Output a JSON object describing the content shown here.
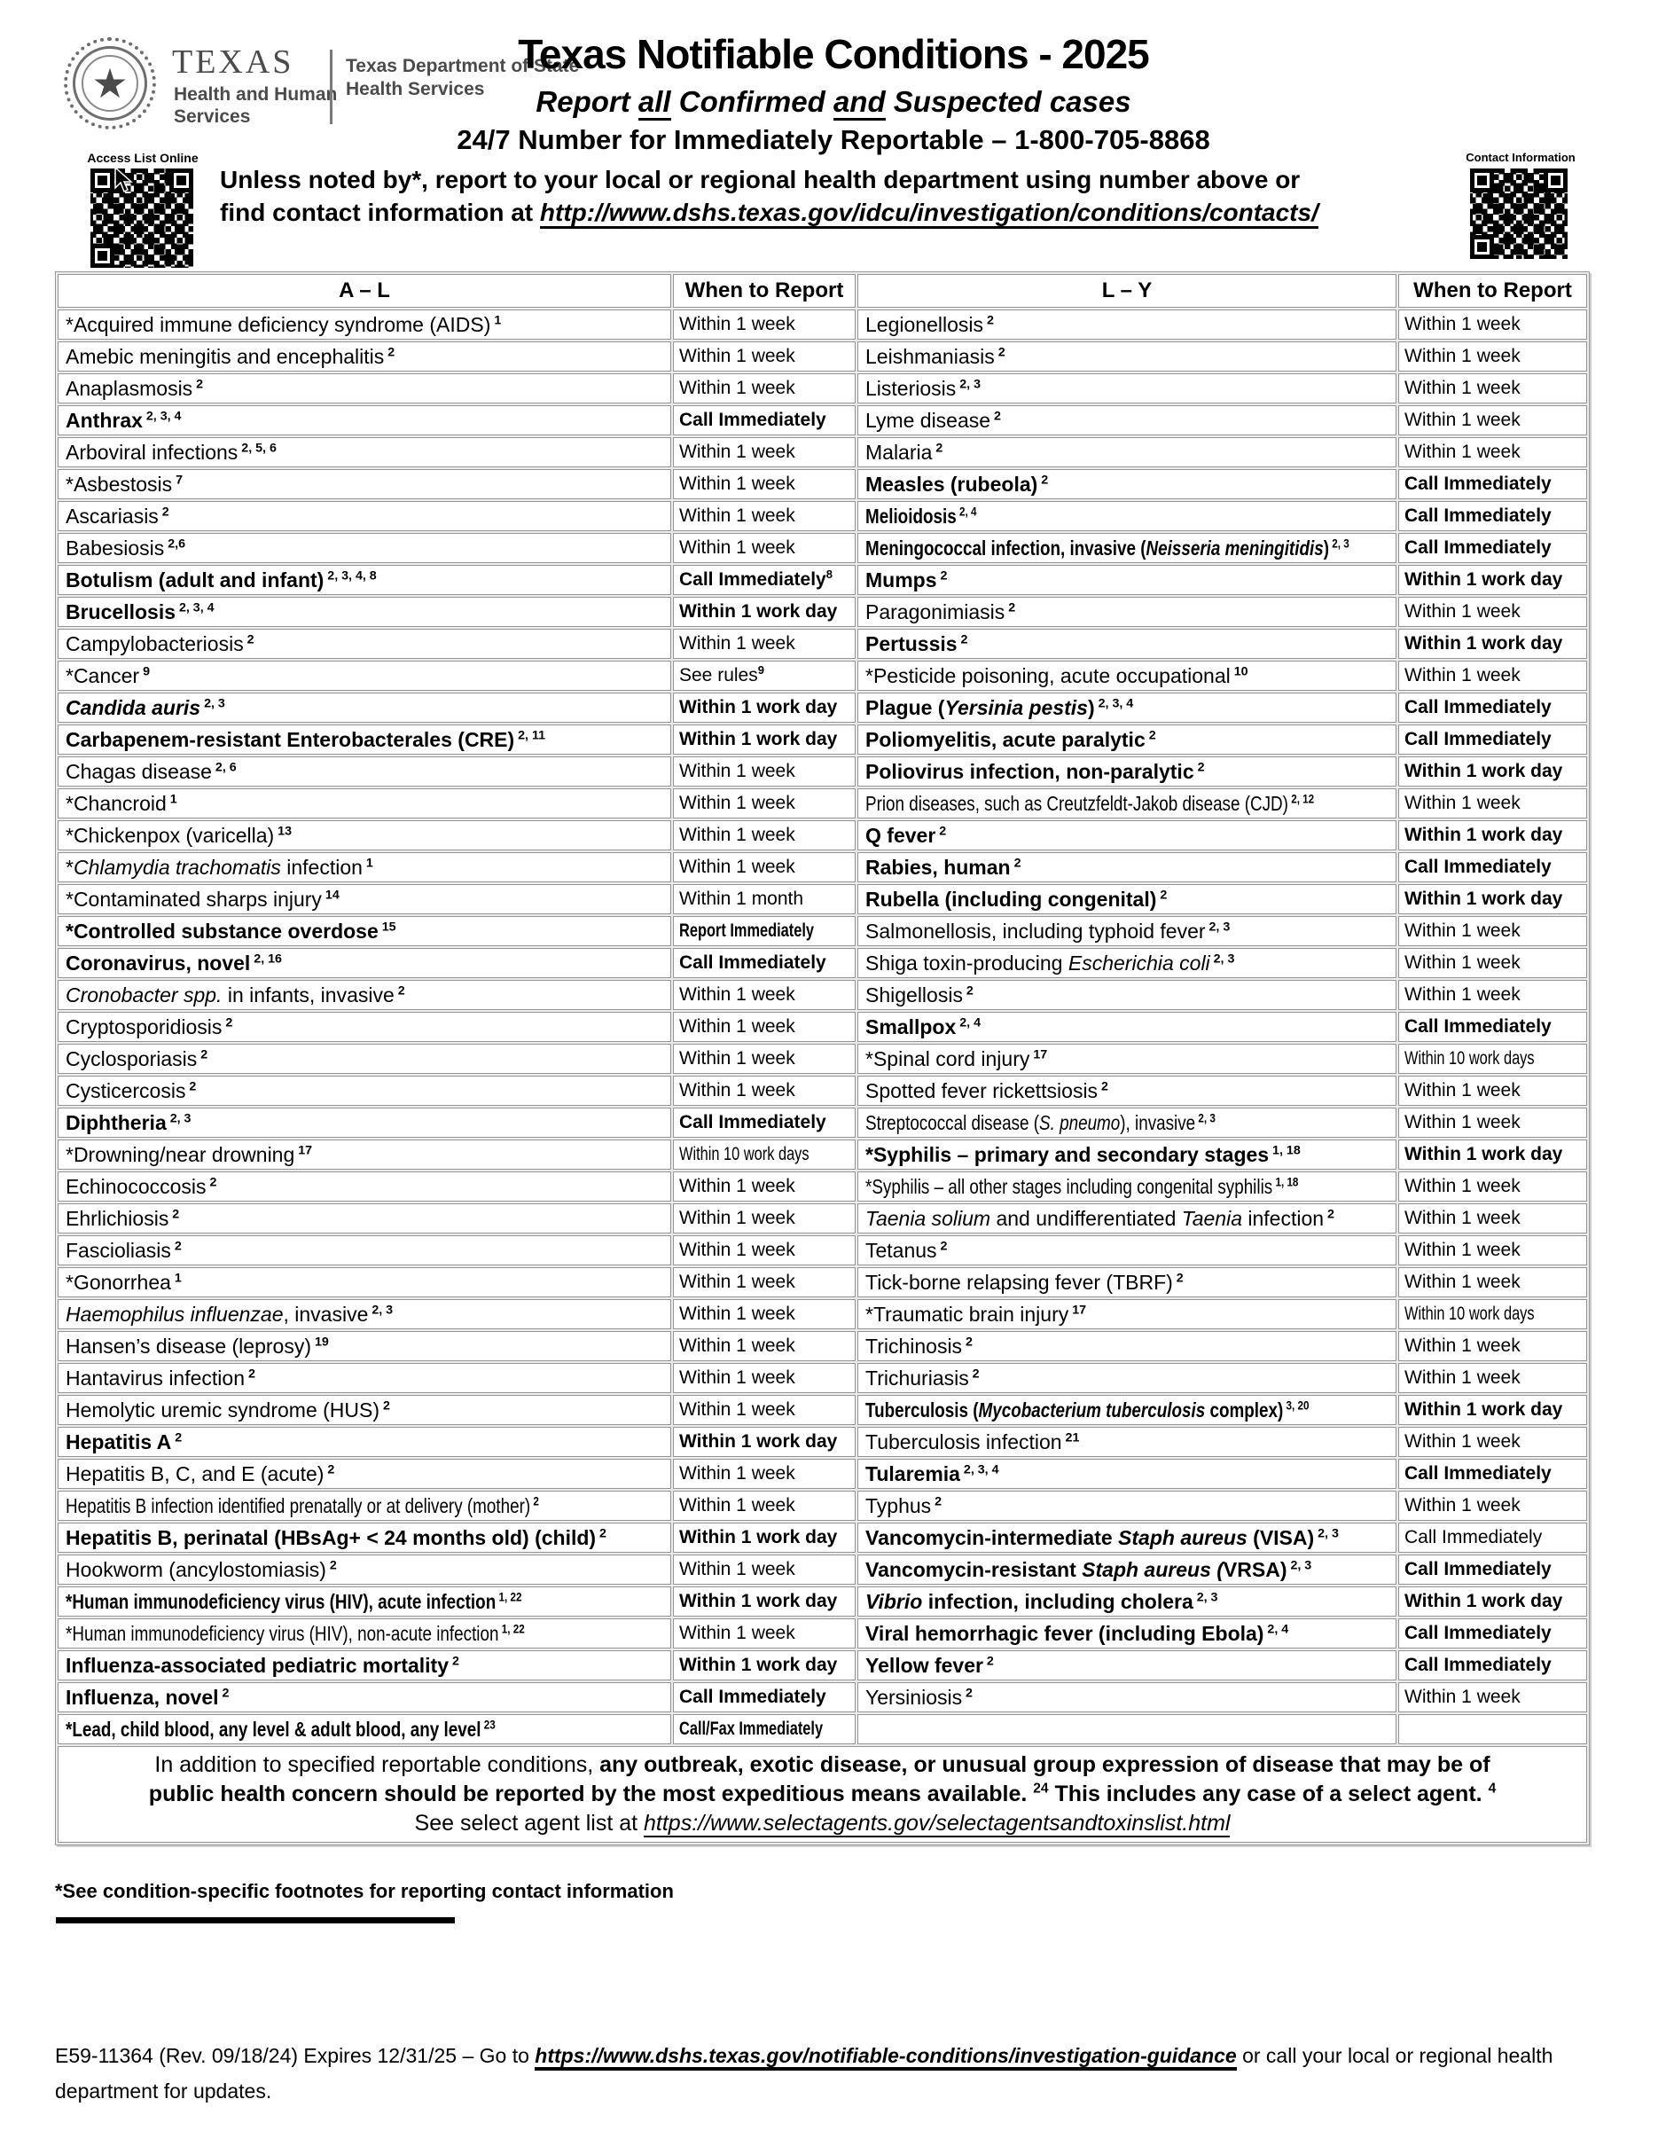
{
  "header": {
    "logo": {
      "texas": "TEXAS",
      "hhs_line1": "Health and Human",
      "hhs_line2": "Services",
      "dshs_line1": "Texas Department of State",
      "dshs_line2": "Health Services"
    },
    "title": "Texas Notifiable Conditions - 2025",
    "subtitle": {
      "pre": "Report ",
      "u1": "all",
      "mid": " Confirmed ",
      "u2": "and",
      "post": " Suspected cases"
    },
    "hotline": "24/7 Number for Immediately Reportable – 1-800-705-8868",
    "instruction_line1": "Unless noted by*, report to your local or regional health department using number above or",
    "instruction_line2_pre": "find contact information at ",
    "instruction_url": "http://www.dshs.texas.gov/idcu/investigation/conditions/contacts/",
    "qr_left_label": "Access List Online",
    "qr_right_label": "Contact Information"
  },
  "table": {
    "headers": [
      "A – L",
      "When to Report",
      "L – Y",
      "When to Report"
    ],
    "rows": [
      {
        "l": {
          "n": [
            "*Acquired immune deficiency syndrome (AIDS)"
          ],
          "s": "1",
          "w": "Within 1 week"
        },
        "r": {
          "n": [
            "Legionellosis"
          ],
          "s": "2",
          "w": "Within 1 week"
        }
      },
      {
        "l": {
          "n": [
            "Amebic meningitis and encephalitis"
          ],
          "s": "2",
          "w": "Within 1 week"
        },
        "r": {
          "n": [
            "Leishmaniasis"
          ],
          "s": "2",
          "w": "Within 1 week"
        }
      },
      {
        "l": {
          "n": [
            "Anaplasmosis"
          ],
          "s": "2",
          "w": "Within 1 week"
        },
        "r": {
          "n": [
            "Listeriosis"
          ],
          "s": "2, 3",
          "w": "Within 1 week"
        }
      },
      {
        "l": {
          "n": [
            "Anthrax"
          ],
          "s": "2, 3, 4",
          "b": 1,
          "w": "Call Immediately",
          "wb": 1
        },
        "r": {
          "n": [
            "Lyme disease"
          ],
          "s": "2",
          "w": "Within 1 week"
        }
      },
      {
        "l": {
          "n": [
            "Arboviral infections"
          ],
          "s": "2, 5, 6",
          "w": "Within 1 week"
        },
        "r": {
          "n": [
            "Malaria"
          ],
          "s": "2",
          "w": "Within 1 week"
        }
      },
      {
        "l": {
          "n": [
            "*Asbestosis"
          ],
          "s": "7",
          "w": "Within 1 week"
        },
        "r": {
          "n": [
            "Measles (rubeola)"
          ],
          "s": "2",
          "b": 1,
          "w": "Call Immediately",
          "wb": 1
        }
      },
      {
        "l": {
          "n": [
            "Ascariasis"
          ],
          "s": "2",
          "w": "Within 1 week"
        },
        "r": {
          "n": [
            "Melioidosis"
          ],
          "s": "2, 4",
          "b": 1,
          "q": 1,
          "w": "Call Immediately",
          "wb": 1
        }
      },
      {
        "l": {
          "n": [
            "Babesiosis"
          ],
          "s": "2,6",
          "w": "Within 1 week"
        },
        "r": {
          "n": [
            "Meningococcal infection, invasive (",
            {
              "i": "Neisseria meningitidis"
            },
            ")"
          ],
          "s": "2, 3",
          "b": 1,
          "q": 1,
          "w": "Call Immediately",
          "wb": 1
        }
      },
      {
        "l": {
          "n": [
            "Botulism (adult and infant)"
          ],
          "s": "2, 3, 4, 8",
          "b": 1,
          "w": "Call Immediately",
          "wb": 1,
          "ws": "8"
        },
        "r": {
          "n": [
            "Mumps"
          ],
          "s": "2",
          "b": 1,
          "w": "Within 1 work day",
          "wb": 1
        }
      },
      {
        "l": {
          "n": [
            "Brucellosis"
          ],
          "s": "2, 3, 4",
          "b": 1,
          "w": "Within 1 work day",
          "wb": 1
        },
        "r": {
          "n": [
            "Paragonimiasis"
          ],
          "s": "2",
          "w": "Within 1 week"
        }
      },
      {
        "l": {
          "n": [
            "Campylobacteriosis"
          ],
          "s": "2",
          "w": "Within 1 week"
        },
        "r": {
          "n": [
            "Pertussis"
          ],
          "s": "2",
          "b": 1,
          "w": "Within 1 work day",
          "wb": 1
        }
      },
      {
        "l": {
          "n": [
            "*Cancer"
          ],
          "s": "9",
          "w": "See rules",
          "ws": "9"
        },
        "r": {
          "n": [
            "*Pesticide poisoning, acute occupational"
          ],
          "s": "10",
          "w": "Within 1 week"
        }
      },
      {
        "l": {
          "n": [
            {
              "i": "Candida auris"
            }
          ],
          "s": "2, 3",
          "b": 1,
          "w": "Within 1 work day",
          "wb": 1
        },
        "r": {
          "n": [
            "Plague (",
            {
              "i": "Yersinia pestis"
            },
            ")"
          ],
          "s": "2, 3, 4",
          "b": 1,
          "w": "Call Immediately",
          "wb": 1
        }
      },
      {
        "l": {
          "n": [
            "Carbapenem-resistant Enterobacterales (CRE)"
          ],
          "s": "2, 11",
          "b": 1,
          "w": "Within 1 work day",
          "wb": 1
        },
        "r": {
          "n": [
            "Poliomyelitis, acute paralytic"
          ],
          "s": "2",
          "b": 1,
          "w": "Call Immediately",
          "wb": 1
        }
      },
      {
        "l": {
          "n": [
            "Chagas disease"
          ],
          "s": "2, 6",
          "w": "Within 1 week"
        },
        "r": {
          "n": [
            "Poliovirus infection, non-paralytic"
          ],
          "s": "2",
          "b": 1,
          "w": "Within 1 work day",
          "wb": 1
        }
      },
      {
        "l": {
          "n": [
            "*Chancroid"
          ],
          "s": "1",
          "w": "Within 1 week"
        },
        "r": {
          "n": [
            "Prion diseases, such as Creutzfeldt-Jakob disease (CJD)"
          ],
          "s": "2, 12",
          "q": 1,
          "w": "Within 1 week"
        }
      },
      {
        "l": {
          "n": [
            "*Chickenpox (varicella)"
          ],
          "s": "13",
          "w": "Within 1 week"
        },
        "r": {
          "n": [
            "Q fever"
          ],
          "s": "2",
          "b": 1,
          "w": "Within 1 work day",
          "wb": 1
        }
      },
      {
        "l": {
          "n": [
            "*",
            {
              "i": "Chlamydia trachomatis"
            },
            " infection"
          ],
          "s": "1",
          "w": "Within 1 week"
        },
        "r": {
          "n": [
            "Rabies, human"
          ],
          "s": "2",
          "b": 1,
          "w": "Call Immediately",
          "wb": 1
        }
      },
      {
        "l": {
          "n": [
            "*Contaminated sharps injury"
          ],
          "s": "14",
          "w": "Within 1 month"
        },
        "r": {
          "n": [
            "Rubella (including congenital)"
          ],
          "s": "2",
          "b": 1,
          "w": "Within 1 work day",
          "wb": 1
        }
      },
      {
        "l": {
          "n": [
            "*Controlled substance overdose"
          ],
          "s": "15",
          "b": 1,
          "w": "Report Immediately",
          "wb": 1,
          "wq": 1
        },
        "r": {
          "n": [
            "Salmonellosis, including typhoid fever"
          ],
          "s": "2, 3",
          "w": "Within 1 week"
        }
      },
      {
        "l": {
          "n": [
            "Coronavirus, novel"
          ],
          "s": "2, 16",
          "b": 1,
          "w": "Call Immediately",
          "wb": 1
        },
        "r": {
          "n": [
            "Shiga toxin-producing ",
            {
              "i": "Escherichia coli"
            }
          ],
          "s": "2, 3",
          "w": "Within 1 week"
        }
      },
      {
        "l": {
          "n": [
            {
              "i": "Cronobacter spp."
            },
            " in infants, invasive"
          ],
          "s": "2",
          "w": "Within 1 week"
        },
        "r": {
          "n": [
            "Shigellosis"
          ],
          "s": "2",
          "w": "Within 1 week"
        }
      },
      {
        "l": {
          "n": [
            "Cryptosporidiosis"
          ],
          "s": "2",
          "w": "Within 1 week"
        },
        "r": {
          "n": [
            "Smallpox"
          ],
          "s": "2, 4",
          "b": 1,
          "w": "Call Immediately",
          "wb": 1
        }
      },
      {
        "l": {
          "n": [
            "Cyclosporiasis"
          ],
          "s": "2",
          "w": "Within 1 week"
        },
        "r": {
          "n": [
            "*Spinal cord injury"
          ],
          "s": "17",
          "w": "Within 10 work days",
          "wq": 1
        }
      },
      {
        "l": {
          "n": [
            "Cysticercosis"
          ],
          "s": "2",
          "w": "Within 1 week"
        },
        "r": {
          "n": [
            "Spotted fever rickettsiosis"
          ],
          "s": "2",
          "w": "Within 1 week"
        }
      },
      {
        "l": {
          "n": [
            "Diphtheria"
          ],
          "s": "2, 3",
          "b": 1,
          "w": "Call Immediately",
          "wb": 1
        },
        "r": {
          "n": [
            "Streptococcal disease (",
            {
              "i": "S. pneumo"
            },
            "), invasive"
          ],
          "s": "2, 3",
          "q": 1,
          "w": "Within 1 week"
        }
      },
      {
        "l": {
          "n": [
            "*Drowning/near drowning"
          ],
          "s": "17",
          "w": "Within 10 work days",
          "wq": 1
        },
        "r": {
          "n": [
            "*Syphilis – primary and secondary stages"
          ],
          "s": "1, 18",
          "b": 1,
          "w": "Within 1 work day",
          "wb": 1
        }
      },
      {
        "l": {
          "n": [
            "Echinococcosis"
          ],
          "s": "2",
          "w": "Within 1 week"
        },
        "r": {
          "n": [
            "*Syphilis – all other stages including congenital syphilis"
          ],
          "s": "1, 18",
          "q": 1,
          "w": "Within 1 week"
        }
      },
      {
        "l": {
          "n": [
            "Ehrlichiosis"
          ],
          "s": "2",
          "w": "Within 1 week"
        },
        "r": {
          "n": [
            {
              "i": "Taenia solium"
            },
            " and undifferentiated ",
            {
              "i": "Taenia"
            },
            " infection"
          ],
          "s": "2",
          "w": "Within 1 week"
        }
      },
      {
        "l": {
          "n": [
            "Fascioliasis"
          ],
          "s": "2",
          "w": "Within 1 week"
        },
        "r": {
          "n": [
            "Tetanus"
          ],
          "s": "2",
          "w": "Within 1 week"
        }
      },
      {
        "l": {
          "n": [
            "*Gonorrhea"
          ],
          "s": "1",
          "w": "Within 1 week"
        },
        "r": {
          "n": [
            "Tick-borne relapsing fever (TBRF)"
          ],
          "s": "2",
          "w": "Within 1 week"
        }
      },
      {
        "l": {
          "n": [
            {
              "i": "Haemophilus influenzae"
            },
            ", invasive"
          ],
          "s": "2, 3",
          "w": "Within 1 week"
        },
        "r": {
          "n": [
            "*Traumatic brain injury"
          ],
          "s": "17",
          "w": "Within 10 work days",
          "wq": 1
        }
      },
      {
        "l": {
          "n": [
            "Hansen’s disease (leprosy)"
          ],
          "s": "19",
          "w": "Within 1 week"
        },
        "r": {
          "n": [
            "Trichinosis"
          ],
          "s": "2",
          "w": "Within 1 week"
        }
      },
      {
        "l": {
          "n": [
            "Hantavirus infection"
          ],
          "s": "2",
          "w": "Within 1 week"
        },
        "r": {
          "n": [
            "Trichuriasis"
          ],
          "s": "2",
          "w": "Within 1 week"
        }
      },
      {
        "l": {
          "n": [
            "Hemolytic uremic syndrome (HUS)"
          ],
          "s": "2",
          "w": "Within 1 week"
        },
        "r": {
          "n": [
            "Tuberculosis (",
            {
              "i": "Mycobacterium tuberculosis"
            },
            " complex)"
          ],
          "s": "3, 20",
          "b": 1,
          "q": 1,
          "w": "Within 1 work day",
          "wb": 1
        }
      },
      {
        "l": {
          "n": [
            "Hepatitis A"
          ],
          "s": "2",
          "b": 1,
          "w": "Within 1 work day",
          "wb": 1
        },
        "r": {
          "n": [
            "Tuberculosis infection"
          ],
          "s": "21",
          "w": "Within 1 week"
        }
      },
      {
        "l": {
          "n": [
            "Hepatitis B, C, and E (acute)"
          ],
          "s": "2",
          "w": "Within 1 week"
        },
        "r": {
          "n": [
            "Tularemia"
          ],
          "s": "2, 3, 4",
          "b": 1,
          "w": "Call Immediately",
          "wb": 1
        }
      },
      {
        "l": {
          "n": [
            "Hepatitis B infection identified prenatally or at delivery (mother)"
          ],
          "s": "2",
          "q": 1,
          "w": "Within 1 week"
        },
        "r": {
          "n": [
            "Typhus"
          ],
          "s": "2",
          "w": "Within 1 week"
        }
      },
      {
        "l": {
          "n": [
            "Hepatitis B, perinatal (HBsAg+ < 24 months old) (child)"
          ],
          "s": "2",
          "b": 1,
          "w": "Within 1 work day",
          "wb": 1
        },
        "r": {
          "n": [
            "Vancomycin-intermediate ",
            {
              "i": "Staph aureus"
            },
            " (VISA)"
          ],
          "s": "2, 3",
          "b": 1,
          "w": "Call Immediately"
        }
      },
      {
        "l": {
          "n": [
            "Hookworm (ancylostomiasis)"
          ],
          "s": "2",
          "w": "Within 1 week"
        },
        "r": {
          "n": [
            "Vancomycin-resistant ",
            {
              "i": "Staph aureus ("
            },
            "VRSA)"
          ],
          "s": "2, 3",
          "b": 1,
          "w": "Call Immediately",
          "wb": 1
        }
      },
      {
        "l": {
          "n": [
            "*Human immunodeficiency virus (HIV), acute infection"
          ],
          "s": "1, 22",
          "b": 1,
          "q": 1,
          "w": "Within 1 work day",
          "wb": 1
        },
        "r": {
          "n": [
            {
              "i": "Vibrio"
            },
            " infection, including cholera"
          ],
          "s": "2, 3",
          "b": 1,
          "w": "Within 1 work day",
          "wb": 1
        }
      },
      {
        "l": {
          "n": [
            "*Human immunodeficiency virus (HIV), non-acute infection"
          ],
          "s": "1, 22",
          "q": 1,
          "w": "Within 1 week"
        },
        "r": {
          "n": [
            "Viral hemorrhagic fever (including Ebola)"
          ],
          "s": "2, 4",
          "b": 1,
          "w": "Call Immediately",
          "wb": 1
        }
      },
      {
        "l": {
          "n": [
            "Influenza-associated pediatric mortality"
          ],
          "s": "2",
          "b": 1,
          "w": "Within 1 work day",
          "wb": 1
        },
        "r": {
          "n": [
            "Yellow fever"
          ],
          "s": "2",
          "b": 1,
          "w": "Call Immediately",
          "wb": 1
        }
      },
      {
        "l": {
          "n": [
            "Influenza, novel"
          ],
          "s": "2",
          "b": 1,
          "w": "Call Immediately",
          "wb": 1
        },
        "r": {
          "n": [
            "Yersiniosis"
          ],
          "s": "2",
          "w": "Within 1 week"
        }
      },
      {
        "l": {
          "n": [
            "*Lead, child blood, any level & adult blood, any level"
          ],
          "s": "23",
          "b": 1,
          "q": 1,
          "w": "Call/Fax Immediately",
          "wb": 1,
          "wq": 1
        },
        "r": null
      }
    ]
  },
  "note": {
    "line1_normal": "In addition to specified reportable conditions, ",
    "line1_bold": "any outbreak, exotic disease, or unusual group expression of disease that may be of",
    "line2_bold_a": "public health concern should be reported by the most expeditious means available.",
    "line2_sup1": "24",
    "line2_bold_b": "This includes any case of a select agent.",
    "line2_sup2": "4",
    "line3_pre": "See select agent list at ",
    "line3_url": "https://www.selectagents.gov/selectagentsandtoxinslist.html"
  },
  "footnote_line": "*See condition-specific footnotes for reporting contact information",
  "footer": {
    "pre": "E59-11364 (Rev. 09/18/24)   Expires 12/31/25 – Go to ",
    "url": "https://www.dshs.texas.gov/notifiable-conditions/investigation-guidance",
    "post": " or call your local or regional health",
    "line2": "department for updates."
  }
}
